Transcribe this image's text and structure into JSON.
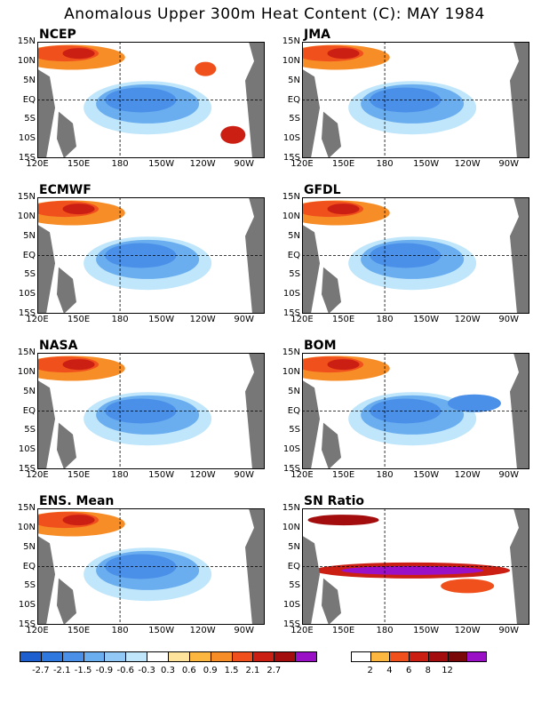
{
  "title": "Anomalous Upper 300m Heat Content (C): MAY 1984",
  "axes": {
    "lat_labels": [
      "15N",
      "10N",
      "5N",
      "EQ",
      "5S",
      "10S",
      "15S"
    ],
    "lon_labels": [
      "120E",
      "150E",
      "180",
      "150W",
      "120W",
      "90W"
    ]
  },
  "panels": [
    {
      "label": "NCEP",
      "style": "ncep"
    },
    {
      "label": "JMA",
      "style": "jma"
    },
    {
      "label": "ECMWF",
      "style": "ecmwf"
    },
    {
      "label": "GFDL",
      "style": "gfdl"
    },
    {
      "label": "NASA",
      "style": "nasa"
    },
    {
      "label": "BOM",
      "style": "bom"
    },
    {
      "label": "ENS. Mean",
      "style": "ens"
    },
    {
      "label": "SN Ratio",
      "style": "sn"
    }
  ],
  "colorbar_anomaly": {
    "colors": [
      "#1d5fcf",
      "#2f78e0",
      "#4a90e8",
      "#6aaef0",
      "#92c8f5",
      "#bfe6fa",
      "#ffffff",
      "#fde39b",
      "#fbb73f",
      "#f78d27",
      "#f0501c",
      "#cc1f14",
      "#a30d0d",
      "#9a10c7"
    ],
    "ticks": [
      "-2.7",
      "-2.1",
      "-1.5",
      "-0.9",
      "-0.6",
      "-0.3",
      "0.3",
      "0.6",
      "0.9",
      "1.5",
      "2.1",
      "2.7"
    ]
  },
  "colorbar_sn": {
    "colors": [
      "#ffffff",
      "#fbb73f",
      "#f0501c",
      "#cc1f14",
      "#a30d0d",
      "#7a0808",
      "#9a10c7"
    ],
    "ticks": [
      "2",
      "4",
      "6",
      "8",
      "12"
    ]
  }
}
